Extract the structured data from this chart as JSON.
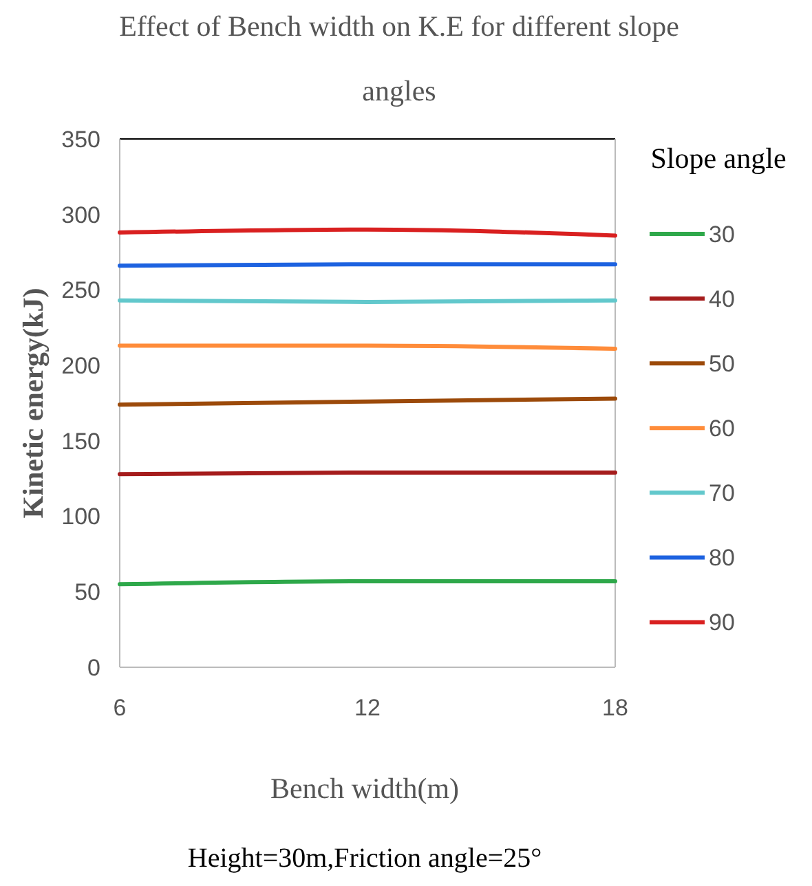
{
  "chart_data": {
    "type": "line",
    "title": "Effect of Bench width on K.E for different slope angles",
    "xlabel": "Bench width(m)",
    "ylabel": "Kinetic energy(kJ)",
    "legend_title": "Slope angle",
    "annotations": [
      "Height=30m,Friction angle=25°"
    ],
    "x": [
      6,
      12,
      18
    ],
    "xlim": [
      6,
      18
    ],
    "xticks": [
      6,
      12,
      18
    ],
    "ylim": [
      0,
      350
    ],
    "yticks": [
      0,
      50,
      100,
      150,
      200,
      250,
      300,
      350
    ],
    "grid": false,
    "legend": "right",
    "marker": "none",
    "line_style": "solid",
    "series": [
      {
        "name": "30",
        "color": "#2ea84a",
        "values": [
          55,
          57,
          57
        ]
      },
      {
        "name": "40",
        "color": "#a51c1c",
        "values": [
          128,
          129,
          129
        ]
      },
      {
        "name": "50",
        "color": "#9c4a0a",
        "values": [
          174,
          176,
          178
        ]
      },
      {
        "name": "60",
        "color": "#ff8c3a",
        "values": [
          213,
          213,
          211
        ]
      },
      {
        "name": "70",
        "color": "#62c8cc",
        "values": [
          243,
          242,
          243
        ]
      },
      {
        "name": "80",
        "color": "#1d62e0",
        "values": [
          266,
          267,
          267
        ]
      },
      {
        "name": "90",
        "color": "#d92020",
        "values": [
          288,
          290,
          286
        ]
      }
    ]
  }
}
